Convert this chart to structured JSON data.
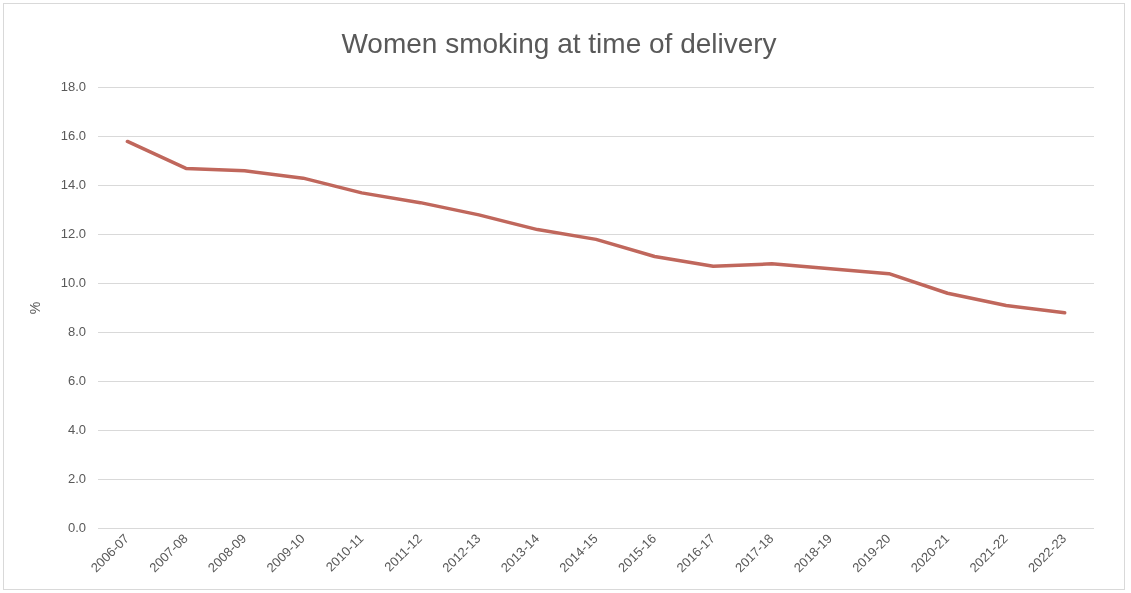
{
  "chart_data": {
    "type": "line",
    "title": "Women smoking at time of delivery",
    "ylabel": "%",
    "categories": [
      "2006-07",
      "2007-08",
      "2008-09",
      "2009-10",
      "2010-11",
      "2011-12",
      "2012-13",
      "2013-14",
      "2014-15",
      "2015-16",
      "2016-17",
      "2017-18",
      "2018-19",
      "2019-20",
      "2020-21",
      "2021-22",
      "2022-23"
    ],
    "series": [
      {
        "color": "#c0675c",
        "values": [
          15.8,
          14.7,
          14.6,
          14.3,
          13.7,
          13.3,
          12.8,
          12.2,
          11.8,
          11.1,
          10.7,
          10.8,
          10.6,
          10.4,
          9.6,
          9.1,
          8.8
        ]
      }
    ],
    "ylim": [
      0,
      18
    ],
    "yticks": [
      {
        "value": 0,
        "label": "0.0"
      },
      {
        "value": 2,
        "label": "2.0"
      },
      {
        "value": 4,
        "label": "4.0"
      },
      {
        "value": 6,
        "label": "6.0"
      },
      {
        "value": 8,
        "label": "8.0"
      },
      {
        "value": 10,
        "label": "10.0"
      },
      {
        "value": 12,
        "label": "12.0"
      },
      {
        "value": 14,
        "label": "14.0"
      },
      {
        "value": 16,
        "label": "16.0"
      },
      {
        "value": 18,
        "label": "18.0"
      }
    ],
    "grid": "y",
    "legend": false,
    "marker": "none",
    "line_style": "solid"
  }
}
